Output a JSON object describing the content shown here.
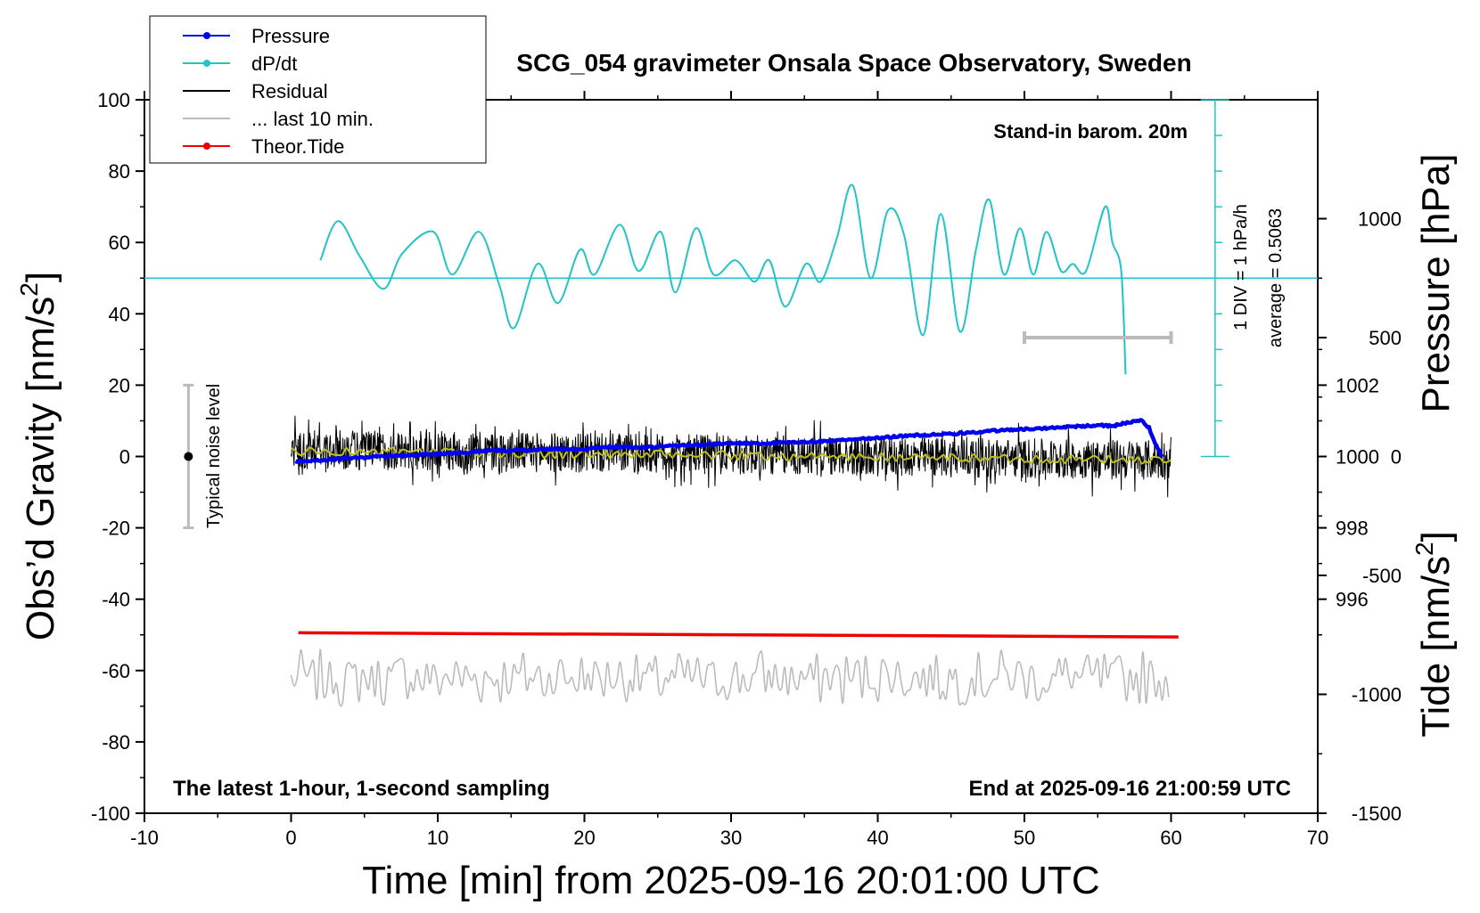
{
  "chart_data": {
    "type": "line",
    "title": "SCG_054 gravimeter Onsala Space Observatory, Sweden",
    "xlabel": "Time [min] from 2025-09-16 20:01:00 UTC",
    "ylabel_left_main": "Obs’d Gravity [nm/s",
    "ylabel_left_sup": "2",
    "ylabel_left_close": "]",
    "ylabel_right_pressure": "Pressure [hPa]",
    "ylabel_right_tide_main": "Tide [nm/s",
    "ylabel_right_tide_sup": "2",
    "ylabel_right_tide_close": "]",
    "xlim": [
      -10,
      70
    ],
    "ylim": [
      -100,
      100
    ],
    "pressure_lim": [
      990,
      1010
    ],
    "tide_lim": [
      -1500,
      1500
    ],
    "x_ticks": [
      -10,
      0,
      10,
      20,
      30,
      40,
      50,
      60,
      70
    ],
    "x_tick_labels": [
      "-10",
      "0",
      "10",
      "20",
      "30",
      "40",
      "50",
      "60",
      "70"
    ],
    "y_ticks": [
      -100,
      -80,
      -60,
      -40,
      -20,
      0,
      20,
      40,
      60,
      80,
      100
    ],
    "y_tick_labels": [
      "-100",
      "-80",
      "-60",
      "-40",
      "-20",
      "0",
      "20",
      "40",
      "60",
      "80",
      "100"
    ],
    "pressure_ticks": [
      996,
      998,
      1000,
      1002
    ],
    "pressure_tick_labels": [
      "996",
      "998",
      "1000",
      "1002"
    ],
    "tide_ticks": [
      -1500,
      -1000,
      -500,
      0,
      500,
      1000
    ],
    "tide_tick_labels": [
      "-1500",
      "-1000",
      "-500",
      "0",
      "500",
      "1000"
    ],
    "legend": [
      {
        "label": "Pressure",
        "color": "#0000ee",
        "marker": true
      },
      {
        "label": "dP/dt",
        "color": "#22c4c4",
        "marker": true
      },
      {
        "label": "Residual",
        "color": "#000000",
        "marker": false
      },
      {
        "label": "... last 10 min.",
        "color": "#bbbbbb",
        "marker": false
      },
      {
        "label": "Theor.Tide",
        "color": "#ee0000",
        "marker": true
      }
    ],
    "legend_position": "top-left",
    "annotations": {
      "stand_in": "Stand-in barom. 20m",
      "latest": "The latest 1-hour, 1-second sampling",
      "end_at": "End at 2025-09-16 21:00:59 UTC",
      "div": "1 DIV = 1 hPa/h",
      "average": "average = 0.5063",
      "noise": "Typical noise level"
    },
    "series": [
      {
        "name": "Pressure",
        "unit": "hPa",
        "color": "#0000ee",
        "x": [
          0.3,
          2,
          4,
          6,
          8,
          10,
          12,
          14,
          16,
          18,
          20,
          22,
          24,
          26,
          28,
          30,
          32,
          34,
          36,
          38,
          40,
          42,
          44,
          46,
          48,
          50,
          52,
          54,
          55,
          56,
          57,
          58,
          58.5,
          59,
          59.5
        ],
        "values": [
          999.86,
          999.9,
          999.95,
          1000.0,
          1000.03,
          1000.07,
          1000.12,
          1000.17,
          1000.17,
          1000.22,
          1000.2,
          1000.28,
          1000.25,
          1000.3,
          1000.33,
          1000.38,
          1000.36,
          1000.4,
          1000.42,
          1000.48,
          1000.52,
          1000.58,
          1000.62,
          1000.66,
          1000.72,
          1000.77,
          1000.8,
          1000.85,
          1000.88,
          1000.85,
          1000.95,
          1001.0,
          1000.8,
          1000.3,
          999.9
        ]
      },
      {
        "name": "dP/dt",
        "unit": "hPa/h",
        "color": "#22c4c4",
        "baseline": 50,
        "x": [
          2,
          3.2,
          4.7,
          6.3,
          7.6,
          9.7,
          11,
          12.8,
          14.2,
          15.2,
          16.8,
          18.2,
          19.7,
          20.7,
          22.4,
          23.7,
          25.2,
          26.2,
          27.6,
          28.8,
          30.3,
          31.6,
          32.6,
          33.7,
          35.1,
          36.1,
          37.2,
          38.3,
          39.5,
          40.7,
          41.8,
          43.1,
          44.3,
          45.6,
          46.7,
          47.6,
          48.6,
          49.7,
          50.6,
          51.5,
          52.5,
          53.3,
          54.2,
          55.5,
          56,
          56.6,
          56.9
        ],
        "values": [
          55,
          66,
          56,
          47,
          57,
          63,
          51,
          63,
          48,
          36,
          54,
          43,
          58,
          51,
          65,
          52,
          63,
          46,
          64,
          51,
          55,
          49,
          55,
          42,
          54,
          49,
          61,
          76,
          50,
          69,
          62,
          34,
          68,
          35,
          58,
          72,
          51,
          64,
          51,
          63,
          52,
          54,
          52,
          70,
          60,
          52,
          23
        ]
      },
      {
        "name": "Residual",
        "unit": "nm/s2",
        "color": "#000000",
        "x_range": [
          0,
          60
        ],
        "typical_range": [
          -7,
          7
        ],
        "trend": [
          2,
          -1
        ]
      },
      {
        "name": "Residual (smoothed)",
        "unit": "nm/s2",
        "color": "#bfc01c",
        "x_range": [
          0,
          60
        ],
        "trend": [
          1.5,
          -1
        ]
      },
      {
        "name": "... last 10 min.",
        "unit": "nm/s2",
        "color": "#bbbbbb",
        "x_range": [
          0,
          60
        ],
        "center": -62,
        "typical_range": [
          -70,
          -54
        ]
      },
      {
        "name": "Theor.Tide",
        "unit": "nm/s2",
        "color": "#ee0000",
        "x": [
          0.5,
          60.5
        ],
        "values": [
          -49.4,
          -50.6
        ]
      }
    ],
    "noise_bar": {
      "x": -7,
      "y": 0,
      "low": -20,
      "high": 20
    },
    "ten_min_bar": {
      "x_start": 50,
      "x_end": 60,
      "tide_value": 500
    },
    "dpdt_scale": {
      "x": 63,
      "y_bottom": 0,
      "y_top": 100,
      "div": 10
    }
  }
}
